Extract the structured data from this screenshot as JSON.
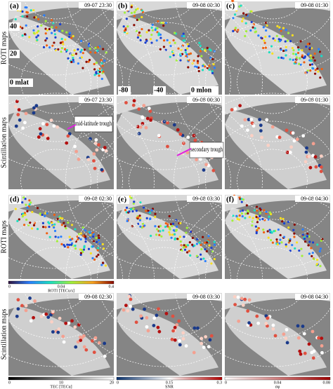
{
  "rows": [
    {
      "label": "ROTI maps",
      "panels": [
        {
          "label": "(a)",
          "time": "09-07 23:30"
        },
        {
          "label": "(b)",
          "time": "09-08 00:30"
        },
        {
          "label": "(c)",
          "time": "09-08 01:30"
        }
      ]
    },
    {
      "label": "Scintillation maps",
      "panels": [
        {
          "time": "09-07 23:30"
        },
        {
          "time": "09-08 00:30"
        },
        {
          "time": "09-08 01:30"
        }
      ]
    },
    {
      "label": "ROTI maps",
      "panels": [
        {
          "label": "(d)",
          "time": "09-08 02:30"
        },
        {
          "label": "(e)",
          "time": "09-08 03:30"
        },
        {
          "label": "(f)",
          "time": "09-08 04:30"
        }
      ]
    },
    {
      "label": "Scintillation maps",
      "panels": [
        {
          "time": "09-08 02:30"
        },
        {
          "time": "09-08 03:30"
        },
        {
          "time": "09-08 04:30"
        }
      ]
    }
  ],
  "lat_labels": [
    "40",
    "20",
    "0 mlat"
  ],
  "lon_labels": [
    "-80",
    "-40",
    "0 mlon"
  ],
  "annotations": [
    "mid-latitude trough",
    "secondary trough"
  ],
  "colorbars": [
    {
      "title": "ROTI [TECu/s]",
      "ticks": [
        "0",
        "0.04",
        "0.4"
      ]
    },
    {
      "title": "TEC [TECu]",
      "ticks": [
        "0",
        "10",
        "20"
      ]
    },
    {
      "title": "SNR",
      "ticks": [
        "0",
        "0.15",
        "0.3"
      ]
    },
    {
      "title": "σφ",
      "ticks": [
        "0",
        "0.04",
        "0.08"
      ]
    }
  ]
}
